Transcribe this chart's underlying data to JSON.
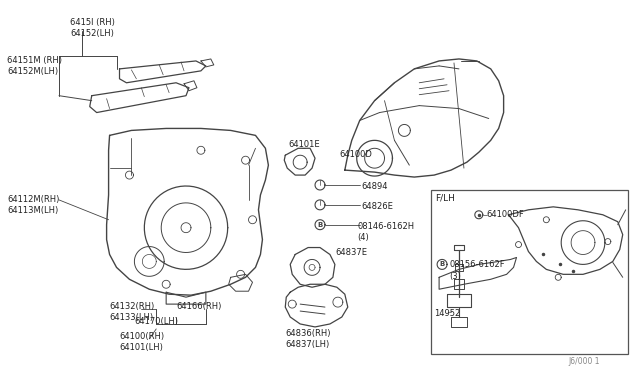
{
  "bg_color": "#ffffff",
  "line_color": "#444444",
  "text_color": "#222222",
  "watermark": "J6/000 1",
  "labels": {
    "top_left_1": "6415l (RH)\n64152(LH)",
    "top_left_2": "64151M (RH)\n64152M(LH)",
    "mid_left_1": "64112M(RH)\n64113M(LH)",
    "mid_left_2": "64132(RH)\n64133(LH)",
    "mid_left_3": "64166(RH)",
    "mid_left_4": "64170(LH)",
    "bot_left_1": "64100(RH)\n64101(LH)",
    "center_top": "64100D",
    "center_1": "64101E",
    "center_2": "64894",
    "center_3": "64826E",
    "center_4": "08146-6162H\n(4)",
    "center_5": "64837E",
    "center_6": "64836(RH)\n64837(LH)",
    "inset_title": "F/LH",
    "inset_1": "64100DF",
    "inset_2": "08156-6162F\n(3)",
    "inset_3": "14952"
  },
  "fig_width": 6.4,
  "fig_height": 3.72,
  "dpi": 100
}
